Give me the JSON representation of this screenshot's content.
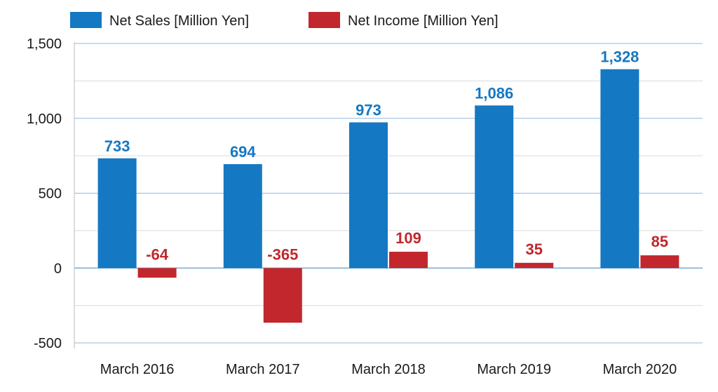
{
  "chart_data": {
    "type": "bar",
    "categories": [
      "March 2016",
      "March 2017",
      "March 2018",
      "March 2019",
      "March 2020"
    ],
    "series": [
      {
        "name": "Net Sales [Million Yen]",
        "color": "#1578c2",
        "values": [
          733,
          694,
          973,
          1086,
          1328
        ],
        "labels": [
          "733",
          "694",
          "973",
          "1,086",
          "1,328"
        ]
      },
      {
        "name": "Net Income [Million Yen]",
        "color": "#c1272d",
        "values": [
          -64,
          -365,
          109,
          35,
          85
        ],
        "labels": [
          "-64",
          "-365",
          "109",
          "35",
          "85"
        ]
      }
    ],
    "yticks": [
      1500,
      1000,
      500,
      0,
      -500
    ],
    "ytick_labels": [
      "1,500",
      "1,000",
      "500",
      "0",
      "-500"
    ],
    "ylim": [
      -500,
      1500
    ],
    "grid": true,
    "legend_position": "top-left",
    "title": "",
    "xlabel": "",
    "ylabel": ""
  }
}
